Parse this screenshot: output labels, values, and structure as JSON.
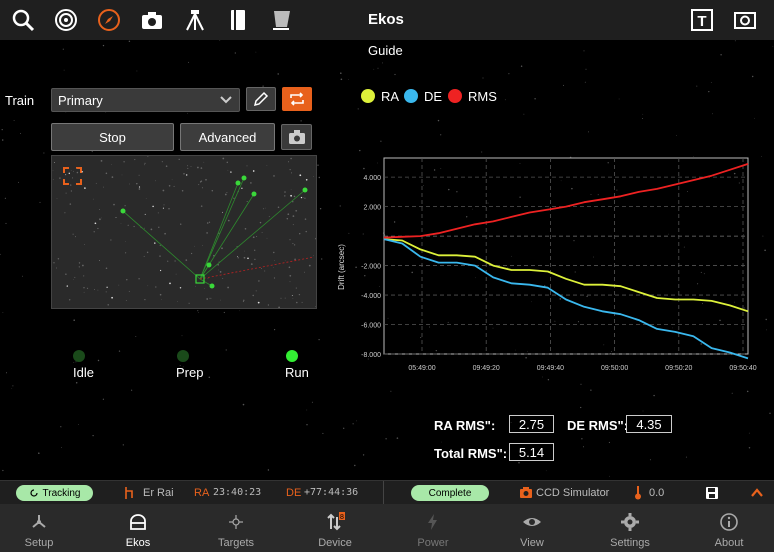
{
  "header": {
    "title": "Ekos",
    "subtitle": "Guide",
    "icons": [
      "search-icon",
      "target-icon",
      "compass-icon",
      "camera-icon",
      "tripod-icon",
      "notebook-icon",
      "flat-icon",
      "text-overlay-icon",
      "screenshot-icon"
    ],
    "accent": "#e8611c"
  },
  "train": {
    "label": "Train",
    "selected": "Primary"
  },
  "controls": {
    "stop": "Stop",
    "advanced": "Advanced"
  },
  "stages": [
    {
      "label": "Idle",
      "color": "#1a4a1a"
    },
    {
      "label": "Prep",
      "color": "#1a4a1a"
    },
    {
      "label": "Run",
      "color": "#33ee33"
    }
  ],
  "legend": [
    {
      "label": "RA",
      "color": "#ddf13a"
    },
    {
      "label": "DE",
      "color": "#3ab8ee"
    },
    {
      "label": "RMS",
      "color": "#ee2222"
    }
  ],
  "chart_data": {
    "type": "line",
    "ylabel": "Drift (arcsec)",
    "ylim": [
      -8000,
      5300
    ],
    "yticks": [
      "4.000",
      "2.000",
      "-2.000",
      "-4.000",
      "-6.000",
      "-8.000"
    ],
    "ytick_values": [
      4000,
      2000,
      -2000,
      -4000,
      -6000,
      -8000
    ],
    "xticks": [
      "05:49:00",
      "09:49:20",
      "09:49:40",
      "09:50:00",
      "09:50:20",
      "09:50:40"
    ],
    "x": [
      0,
      5,
      10,
      15,
      20,
      25,
      30,
      35,
      40,
      45,
      50,
      55,
      60,
      65,
      70,
      75,
      80,
      85,
      90,
      95,
      100
    ],
    "series": [
      {
        "name": "RA",
        "values": [
          -200,
          -300,
          -900,
          -1300,
          -1300,
          -1400,
          -2000,
          -2300,
          -2300,
          -2400,
          -2900,
          -3300,
          -3300,
          -3400,
          -3800,
          -4200,
          -4300,
          -4300,
          -4400,
          -4700,
          -5100
        ]
      },
      {
        "name": "DE",
        "values": [
          -200,
          -500,
          -1400,
          -1800,
          -1800,
          -2000,
          -2800,
          -3200,
          -3300,
          -3500,
          -4300,
          -4800,
          -5100,
          -5300,
          -5700,
          -6300,
          -6500,
          -6800,
          -7600,
          -7900,
          -8300
        ]
      },
      {
        "name": "RMS",
        "values": [
          -100,
          -50,
          0,
          200,
          500,
          800,
          1000,
          1300,
          1600,
          1800,
          2000,
          2300,
          2500,
          2700,
          3000,
          3200,
          3500,
          3800,
          4100,
          4500,
          4900
        ]
      }
    ]
  },
  "stats": {
    "ra_rms_label": "RA RMS\":",
    "ra_rms": "2.75",
    "de_rms_label": "DE RMS\":",
    "de_rms": "4.35",
    "total_rms_label": "Total RMS\":",
    "total_rms": "5.14"
  },
  "status": {
    "mount_state": "Tracking",
    "mount_name": "Er Rai",
    "ra_label": "RA",
    "ra_value": "23:40:23",
    "de_label": "DE",
    "de_value": "+77:44:36",
    "capture_state": "Complete",
    "camera": "CCD Simulator",
    "temperature": "0.0"
  },
  "nav": [
    {
      "label": "Setup",
      "icon": "setup-icon"
    },
    {
      "label": "Ekos",
      "icon": "ekos-icon"
    },
    {
      "label": "Targets",
      "icon": "targets-icon"
    },
    {
      "label": "Device",
      "icon": "device-icon"
    },
    {
      "label": "Power",
      "icon": "power-icon"
    },
    {
      "label": "View",
      "icon": "view-icon"
    },
    {
      "label": "Settings",
      "icon": "settings-icon"
    },
    {
      "label": "About",
      "icon": "about-icon"
    }
  ]
}
